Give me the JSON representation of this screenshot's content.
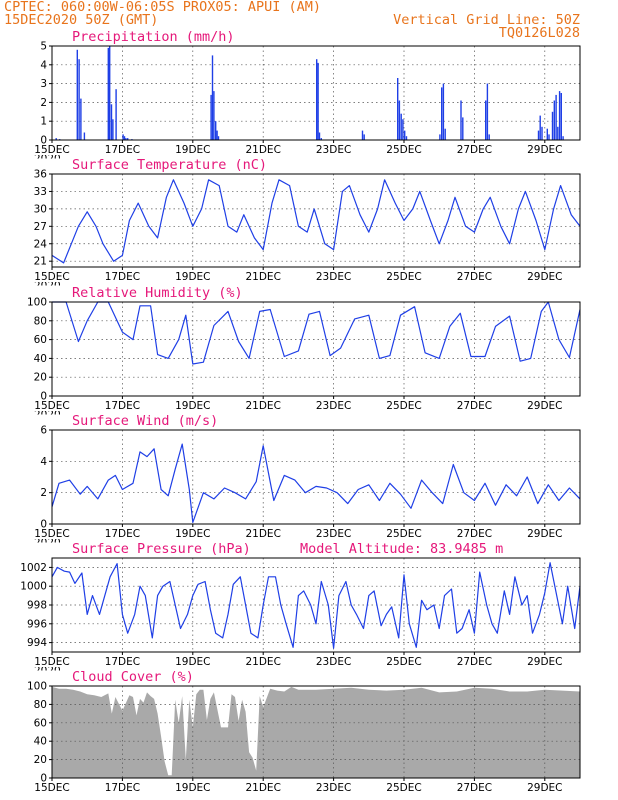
{
  "header": {
    "line1_left": "CPTEC:   060:00W-06:05S   PROX05: APUI (AM)",
    "line2_left": "15DEC2020 50Z (GMT)",
    "line2_right": "Vertical Grid Line: 50Z",
    "line3_right": "TQ0126L028"
  },
  "colors": {
    "header": "#e8741c",
    "title": "#e5187a",
    "series": "#1f3fe6",
    "cloud": "#a9a9a9"
  },
  "x_tick_labels": [
    "15DEC",
    "17DEC",
    "19DEC",
    "21DEC",
    "23DEC",
    "25DEC",
    "27DEC",
    "29DEC"
  ],
  "year_label": "2020",
  "chart_data": [
    {
      "id": "precipitation",
      "type": "bar",
      "title": "Precipitation (mm/h)",
      "xlim": [
        0,
        15
      ],
      "ylim": [
        0,
        5
      ],
      "yticks": [
        0,
        1,
        2,
        3,
        4,
        5
      ],
      "x": [
        0.1,
        0.2,
        0.7,
        0.75,
        0.8,
        0.9,
        1.58,
        1.62,
        1.67,
        1.71,
        1.8,
        2.0,
        2.04,
        2.08,
        2.13,
        2.25,
        4.5,
        4.54,
        4.58,
        4.63,
        4.67,
        4.71,
        7.5,
        7.54,
        7.58,
        7.63,
        8.8,
        8.85,
        9.8,
        9.85,
        9.9,
        9.95,
        10.0,
        10.05,
        11.0,
        11.05,
        11.1,
        11.15,
        11.6,
        11.65,
        12.3,
        12.35,
        12.4,
        13.8,
        13.85,
        13.9,
        14.05,
        14.1,
        14.2,
        14.25,
        14.3,
        14.35,
        14.4,
        14.45,
        14.5
      ],
      "values": [
        0.1,
        0.05,
        4.8,
        4.3,
        2.2,
        0.4,
        4.9,
        5.0,
        1.9,
        1.1,
        2.7,
        0.3,
        0.2,
        0.1,
        0.1,
        0.05,
        2.4,
        4.5,
        2.6,
        1.0,
        0.5,
        0.2,
        4.3,
        4.1,
        0.4,
        0.1,
        0.5,
        0.3,
        3.3,
        2.1,
        1.4,
        1.1,
        0.5,
        0.2,
        0.3,
        2.8,
        3.0,
        0.6,
        2.1,
        1.2,
        2.1,
        3.0,
        0.3,
        0.5,
        1.3,
        0.7,
        0.6,
        0.3,
        1.5,
        2.1,
        2.4,
        0.7,
        2.6,
        2.5,
        0.2
      ]
    },
    {
      "id": "surface-temperature",
      "type": "line",
      "title": "Surface Temperature (nC)",
      "xlim": [
        0,
        15
      ],
      "ylim": [
        20,
        36
      ],
      "yticks": [
        21,
        24,
        27,
        30,
        33,
        36
      ],
      "x": [
        0.0,
        0.33,
        0.75,
        1.0,
        1.25,
        1.45,
        1.75,
        2.0,
        2.2,
        2.45,
        2.75,
        3.0,
        3.25,
        3.45,
        3.75,
        4.0,
        4.25,
        4.45,
        4.75,
        5.0,
        5.25,
        5.45,
        5.75,
        6.0,
        6.25,
        6.45,
        6.75,
        7.0,
        7.25,
        7.45,
        7.75,
        8.0,
        8.25,
        8.45,
        8.75,
        9.0,
        9.25,
        9.45,
        9.75,
        10.0,
        10.25,
        10.45,
        10.75,
        11.0,
        11.25,
        11.45,
        11.75,
        12.0,
        12.25,
        12.45,
        12.75,
        13.0,
        13.25,
        13.45,
        13.75,
        14.0,
        14.25,
        14.45,
        14.75,
        15.0
      ],
      "values": [
        22,
        20.7,
        27,
        29.5,
        27,
        24,
        21,
        22,
        28,
        31,
        27,
        25,
        32,
        35,
        31,
        27,
        30,
        35,
        34,
        27,
        26,
        29,
        25,
        23,
        31,
        35,
        34,
        27,
        26,
        30,
        24,
        23,
        33,
        34,
        29,
        26,
        30,
        35,
        31,
        28,
        30,
        33,
        28,
        24,
        28,
        32,
        27,
        26,
        30,
        32,
        27,
        24,
        30,
        33,
        28,
        23,
        30,
        34,
        29,
        27
      ]
    },
    {
      "id": "relative-humidity",
      "type": "line",
      "title": "Relative Humidity (%)",
      "xlim": [
        0,
        15
      ],
      "ylim": [
        0,
        100
      ],
      "yticks": [
        0,
        20,
        40,
        60,
        80,
        100
      ],
      "x": [
        0.0,
        0.4,
        0.75,
        1.0,
        1.3,
        1.6,
        2.0,
        2.3,
        2.5,
        2.8,
        3.0,
        3.3,
        3.6,
        3.8,
        4.0,
        4.3,
        4.6,
        5.0,
        5.3,
        5.6,
        5.9,
        6.2,
        6.6,
        7.0,
        7.3,
        7.6,
        7.9,
        8.2,
        8.6,
        9.0,
        9.3,
        9.6,
        9.9,
        10.3,
        10.6,
        11.0,
        11.3,
        11.6,
        11.9,
        12.3,
        12.6,
        13.0,
        13.3,
        13.6,
        13.9,
        14.1,
        14.4,
        14.7,
        15.0
      ],
      "values": [
        100,
        100,
        58,
        80,
        100,
        100,
        68,
        60,
        96,
        96,
        44,
        40,
        60,
        86,
        34,
        36,
        75,
        90,
        58,
        40,
        90,
        92,
        42,
        48,
        87,
        90,
        43,
        51,
        82,
        86,
        40,
        43,
        86,
        95,
        46,
        40,
        74,
        88,
        42,
        42,
        74,
        85,
        37,
        40,
        90,
        100,
        60,
        41,
        92
      ]
    },
    {
      "id": "surface-wind",
      "type": "line",
      "title": "Surface Wind (m/s)",
      "xlim": [
        0,
        15
      ],
      "ylim": [
        0,
        6
      ],
      "yticks": [
        0,
        2,
        4,
        6
      ],
      "x": [
        0.0,
        0.2,
        0.5,
        0.8,
        1.0,
        1.3,
        1.6,
        1.8,
        2.0,
        2.3,
        2.5,
        2.7,
        2.9,
        3.1,
        3.3,
        3.5,
        3.7,
        3.9,
        4.0,
        4.3,
        4.6,
        4.9,
        5.2,
        5.5,
        5.8,
        6.0,
        6.3,
        6.6,
        6.9,
        7.2,
        7.5,
        7.8,
        8.1,
        8.4,
        8.7,
        9.0,
        9.3,
        9.6,
        9.9,
        10.2,
        10.5,
        10.8,
        11.1,
        11.4,
        11.7,
        12.0,
        12.3,
        12.6,
        12.9,
        13.2,
        13.5,
        13.8,
        14.1,
        14.4,
        14.7,
        15.0
      ],
      "values": [
        1.1,
        2.6,
        2.8,
        1.9,
        2.4,
        1.6,
        2.8,
        3.1,
        2.2,
        2.6,
        4.6,
        4.3,
        4.8,
        2.2,
        1.8,
        3.5,
        5.1,
        2.2,
        0.1,
        2.0,
        1.6,
        2.3,
        2.0,
        1.6,
        2.7,
        5.0,
        1.5,
        3.1,
        2.8,
        2.0,
        2.4,
        2.3,
        2.0,
        1.3,
        2.2,
        2.5,
        1.5,
        2.6,
        1.9,
        1.0,
        2.8,
        2.0,
        1.3,
        3.8,
        2.0,
        1.5,
        2.6,
        1.2,
        2.5,
        1.8,
        3.0,
        1.3,
        2.5,
        1.5,
        2.3,
        1.6
      ]
    },
    {
      "id": "surface-pressure",
      "type": "line",
      "title": "Surface Pressure (hPa)",
      "annotation": "Model Altitude: 83.9485 m",
      "xlim": [
        0,
        15
      ],
      "ylim": [
        993,
        1003
      ],
      "yticks": [
        994,
        996,
        998,
        1000,
        1002
      ],
      "x": [
        0.0,
        0.15,
        0.35,
        0.5,
        0.65,
        0.85,
        1.0,
        1.15,
        1.35,
        1.5,
        1.65,
        1.85,
        2.0,
        2.15,
        2.35,
        2.5,
        2.65,
        2.85,
        3.0,
        3.15,
        3.35,
        3.5,
        3.65,
        3.85,
        4.0,
        4.15,
        4.35,
        4.5,
        4.65,
        4.85,
        5.0,
        5.15,
        5.35,
        5.5,
        5.65,
        5.85,
        6.0,
        6.15,
        6.35,
        6.5,
        6.65,
        6.85,
        7.0,
        7.15,
        7.35,
        7.5,
        7.65,
        7.85,
        8.0,
        8.15,
        8.35,
        8.5,
        8.65,
        8.85,
        9.0,
        9.15,
        9.35,
        9.5,
        9.65,
        9.85,
        10.0,
        10.15,
        10.35,
        10.5,
        10.65,
        10.85,
        11.0,
        11.15,
        11.35,
        11.5,
        11.65,
        11.85,
        12.0,
        12.15,
        12.35,
        12.5,
        12.65,
        12.85,
        13.0,
        13.15,
        13.35,
        13.5,
        13.65,
        13.85,
        14.0,
        14.15,
        14.35,
        14.5,
        14.65,
        14.85,
        15.0
      ],
      "values": [
        1001,
        1002,
        1001.6,
        1001.5,
        1000.3,
        1001.4,
        997,
        999,
        997,
        999,
        1001,
        1002.4,
        997,
        995,
        997,
        1000,
        999,
        994.5,
        999,
        1000,
        1000.5,
        998,
        995.5,
        997,
        999,
        1000.2,
        1000.5,
        997.5,
        995,
        994.5,
        997,
        1000.2,
        1001,
        998,
        995,
        994.5,
        998,
        1001,
        1001,
        998,
        996,
        993.5,
        999,
        999.5,
        998,
        996,
        1000.5,
        998,
        993.4,
        999,
        1000.5,
        998,
        997,
        995.5,
        999,
        999.5,
        995.8,
        997,
        997.8,
        994.5,
        1001.2,
        996,
        993.5,
        998.5,
        997.5,
        998,
        995.5,
        999,
        999.7,
        995,
        995.5,
        997.5,
        995,
        1001.5,
        998,
        996,
        995,
        999.5,
        997,
        1001,
        998,
        999,
        995,
        997,
        999.3,
        1002.5,
        998.8,
        996,
        1000,
        995.5,
        1000
      ]
    },
    {
      "id": "cloud-cover",
      "type": "area",
      "title": "Cloud Cover (%)",
      "xlim": [
        0,
        15
      ],
      "ylim": [
        0,
        100
      ],
      "yticks": [
        0,
        20,
        40,
        60,
        80,
        100
      ],
      "x": [
        0.0,
        0.2,
        0.4,
        0.6,
        0.8,
        1.0,
        1.2,
        1.4,
        1.6,
        1.7,
        1.8,
        2.0,
        2.2,
        2.3,
        2.4,
        2.5,
        2.6,
        2.7,
        2.8,
        2.9,
        3.0,
        3.1,
        3.2,
        3.3,
        3.4,
        3.5,
        3.6,
        3.7,
        3.8,
        3.9,
        4.0,
        4.1,
        4.2,
        4.3,
        4.4,
        4.5,
        4.6,
        4.8,
        5.0,
        5.1,
        5.2,
        5.3,
        5.4,
        5.5,
        5.6,
        5.7,
        5.8,
        5.9,
        6.0,
        6.2,
        6.4,
        6.6,
        6.8,
        7.0,
        7.5,
        8.0,
        8.5,
        9.0,
        9.5,
        10.0,
        10.5,
        11.0,
        11.5,
        12.0,
        12.5,
        13.0,
        13.5,
        14.0,
        14.5,
        15.0
      ],
      "values": [
        99,
        97,
        97,
        96,
        94,
        91,
        90,
        88,
        92,
        70,
        88,
        73,
        90,
        88,
        68,
        86,
        82,
        93,
        89,
        86,
        70,
        45,
        18,
        3,
        3,
        85,
        60,
        89,
        20,
        85,
        55,
        91,
        96,
        96,
        63,
        86,
        93,
        55,
        55,
        91,
        88,
        62,
        85,
        72,
        28,
        22,
        8,
        89,
        77,
        97,
        95,
        94,
        99,
        96,
        96,
        97,
        98,
        96,
        95,
        96,
        98,
        93,
        94,
        98,
        97,
        94,
        94,
        96,
        95,
        94
      ]
    }
  ]
}
